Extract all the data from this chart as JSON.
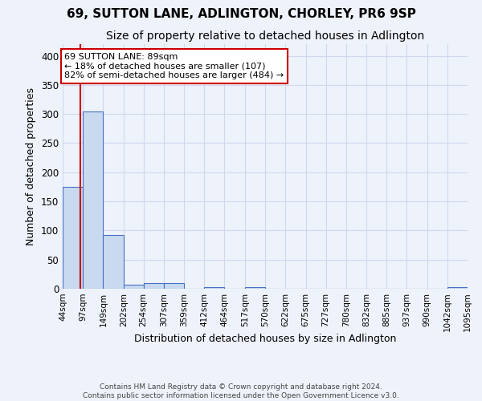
{
  "title": "69, SUTTON LANE, ADLINGTON, CHORLEY, PR6 9SP",
  "subtitle": "Size of property relative to detached houses in Adlington",
  "xlabel": "Distribution of detached houses by size in Adlington",
  "ylabel": "Number of detached properties",
  "bin_labels": [
    "44sqm",
    "97sqm",
    "149sqm",
    "202sqm",
    "254sqm",
    "307sqm",
    "359sqm",
    "412sqm",
    "464sqm",
    "517sqm",
    "570sqm",
    "622sqm",
    "675sqm",
    "727sqm",
    "780sqm",
    "832sqm",
    "885sqm",
    "937sqm",
    "990sqm",
    "1042sqm",
    "1095sqm"
  ],
  "bar_values": [
    175,
    305,
    92,
    7,
    9,
    10,
    0,
    3,
    0,
    3,
    0,
    0,
    0,
    0,
    0,
    0,
    0,
    0,
    0,
    3
  ],
  "bar_color": "#c9d9f0",
  "bar_edge_color": "#4472c4",
  "bg_color": "#eef2fa",
  "grid_color": "#d0d8ee",
  "vline_x": 89,
  "vline_color": "#cc0000",
  "annotation_text": "69 SUTTON LANE: 89sqm\n← 18% of detached houses are smaller (107)\n82% of semi-detached houses are larger (484) →",
  "annotation_box_color": "#ffffff",
  "annotation_box_edge_color": "#cc0000",
  "footer_line1": "Contains HM Land Registry data © Crown copyright and database right 2024.",
  "footer_line2": "Contains public sector information licensed under the Open Government Licence v3.0.",
  "ylim": [
    0,
    420
  ],
  "title_fontsize": 11,
  "subtitle_fontsize": 10,
  "ylabel_fontsize": 9,
  "xlabel_fontsize": 9,
  "tick_fontsize": 7.5,
  "annot_fontsize": 8,
  "footer_fontsize": 6.5
}
